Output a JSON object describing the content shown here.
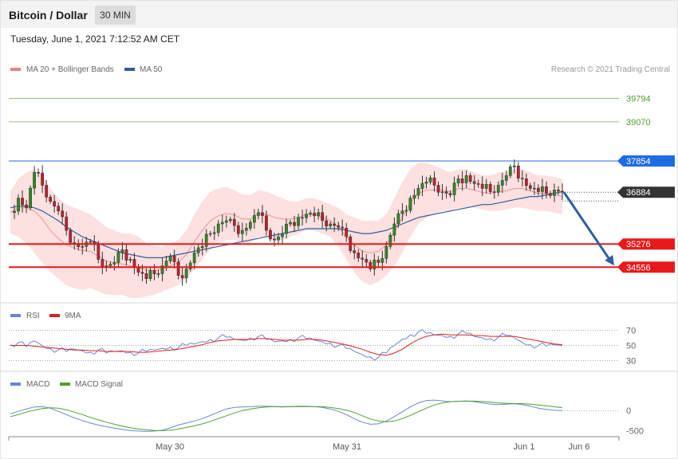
{
  "header": {
    "title": "Bitcoin / Dollar",
    "interval": "30 MIN"
  },
  "timestamp": "Tuesday, June 1, 2021 7:12:52 AM CET",
  "colors": {
    "ma20": "#f08080",
    "bollinger_fill": "#fde0e0",
    "ma50": "#2f5e9e",
    "candle_up": "#2e8b22",
    "candle_down": "#c0202a",
    "resistance_green": "#4fa12b",
    "pivot_blue": "#1e6be6",
    "support_red": "#e8191a",
    "current_price": "#333333",
    "rsi": "#6b86d6",
    "rsi_9ma": "#e02020",
    "macd": "#6b86d6",
    "macd_signal": "#4fa12b",
    "arrow": "#2e5fa0"
  },
  "chart_data": [
    {
      "type": "candlestick",
      "legend": [
        {
          "name": "MA 20 + Bollinger Bands",
          "color": "#f08080"
        },
        {
          "name": "MA 50",
          "color": "#2f5e9e"
        }
      ],
      "credit": "Research © 2021 Trading Central",
      "levels": [
        {
          "value": 39794,
          "label": "39794",
          "kind": "resistance"
        },
        {
          "value": 39070,
          "label": "39070",
          "kind": "resistance"
        },
        {
          "value": 37854,
          "label": "37854",
          "kind": "pivot"
        },
        {
          "value": 36884,
          "label": "36884",
          "kind": "current"
        },
        {
          "value": 35276,
          "label": "35276",
          "kind": "support"
        },
        {
          "value": 34556,
          "label": "34556",
          "kind": "support"
        }
      ],
      "x_ticks": [
        "May 30",
        "May 31",
        "Jun 1",
        "Jun 6"
      ],
      "ylim": [
        33500,
        40500
      ],
      "price_path": [
        36250,
        36700,
        36400,
        37500,
        37100,
        36600,
        36300,
        35700,
        35300,
        35200,
        35350,
        34800,
        34600,
        34700,
        35100,
        34800,
        34400,
        34200,
        34350,
        34600,
        34900,
        34300,
        34500,
        35000,
        35200,
        35600,
        35900,
        36000,
        35850,
        35700,
        35950,
        36250,
        35700,
        35400,
        35600,
        35950,
        36100,
        36200,
        36150,
        36000,
        35900,
        35800,
        35500,
        35000,
        34800,
        34500,
        34700,
        35200,
        35900,
        36300,
        36700,
        37000,
        37200,
        37100,
        36900,
        36800,
        37300,
        37400,
        37150,
        37000,
        36900,
        37100,
        37400,
        37700,
        37300,
        37000,
        36900,
        36850,
        36950,
        36884
      ],
      "bb_upper_path": [
        36900,
        37300,
        37500,
        37600,
        37400,
        37000,
        36700,
        36500,
        36400,
        36300,
        36200,
        36000,
        35800,
        35700,
        35600,
        35600,
        35500,
        35300,
        35200,
        35200,
        35300,
        35400,
        35700,
        36200,
        36600,
        36900,
        37000,
        37050,
        36950,
        36800,
        36800,
        36950,
        36900,
        36800,
        36700,
        36600,
        36600,
        36700,
        36700,
        36600,
        36500,
        36400,
        36200,
        36100,
        36000,
        36000,
        36000,
        36200,
        36700,
        37200,
        37600,
        37800,
        37800,
        37700,
        37600,
        37500,
        37600,
        37600,
        37500,
        37400,
        37400,
        37500,
        37500,
        37600,
        37600,
        37500,
        37400,
        37400,
        37350,
        37300
      ],
      "bb_lower_path": [
        35600,
        35500,
        35300,
        35000,
        34700,
        34400,
        34200,
        34000,
        33900,
        33850,
        33900,
        33800,
        33700,
        33700,
        33700,
        33600,
        33600,
        33650,
        33700,
        33800,
        33900,
        34000,
        34200,
        34500,
        34800,
        35100,
        35300,
        35400,
        35400,
        35300,
        35300,
        35500,
        35500,
        35400,
        35400,
        35500,
        35600,
        35700,
        35700,
        35600,
        35500,
        35200,
        34800,
        34400,
        34100,
        34000,
        34100,
        34300,
        34600,
        35000,
        35500,
        35900,
        36100,
        36200,
        36300,
        36300,
        36400,
        36400,
        36400,
        36350,
        36300,
        36300,
        36350,
        36400,
        36400,
        36350,
        36300,
        36300,
        36250,
        36200
      ],
      "ma50_path": [
        36400,
        36450,
        36450,
        36400,
        36300,
        36150,
        36000,
        35800,
        35650,
        35500,
        35400,
        35300,
        35200,
        35100,
        35000,
        34950,
        34900,
        34850,
        34850,
        34850,
        34900,
        34950,
        35000,
        35050,
        35100,
        35150,
        35200,
        35250,
        35300,
        35350,
        35400,
        35450,
        35500,
        35550,
        35600,
        35650,
        35700,
        35750,
        35750,
        35750,
        35750,
        35750,
        35700,
        35650,
        35600,
        35600,
        35650,
        35700,
        35800,
        35900,
        36000,
        36100,
        36150,
        36200,
        36250,
        36300,
        36350,
        36400,
        36450,
        36500,
        36500,
        36550,
        36600,
        36650,
        36700,
        36750,
        36750,
        36800,
        36850,
        36900
      ],
      "forecast_target": 34556
    },
    {
      "type": "line",
      "legend": [
        {
          "name": "RSI",
          "color": "#6b86d6"
        },
        {
          "name": "9MA",
          "color": "#e02020"
        }
      ],
      "y_ticks": [
        "70",
        "50",
        "30"
      ],
      "ylim": [
        20,
        80
      ],
      "rsi_path": [
        51,
        54,
        48,
        56,
        50,
        46,
        44,
        42,
        45,
        43,
        41,
        44,
        40,
        42,
        43,
        41,
        40,
        42,
        44,
        46,
        48,
        47,
        50,
        52,
        55,
        58,
        60,
        61,
        58,
        57,
        60,
        62,
        58,
        55,
        56,
        58,
        60,
        59,
        57,
        55,
        53,
        50,
        46,
        42,
        38,
        35,
        34,
        40,
        50,
        58,
        64,
        68,
        66,
        64,
        63,
        62,
        65,
        66,
        62,
        60,
        59,
        61,
        63,
        60,
        54,
        51,
        50,
        49,
        51,
        50
      ],
      "ma9_path": [
        50,
        50,
        50,
        49,
        48,
        47,
        46,
        45,
        44,
        44,
        43,
        43,
        42,
        42,
        42,
        42,
        41,
        41,
        42,
        43,
        44,
        45,
        47,
        49,
        51,
        54,
        56,
        57,
        58,
        58,
        58,
        59,
        59,
        58,
        57,
        57,
        57,
        58,
        58,
        57,
        55,
        53,
        51,
        48,
        45,
        41,
        38,
        37,
        40,
        45,
        52,
        58,
        62,
        64,
        65,
        64,
        64,
        64,
        63,
        63,
        62,
        62,
        62,
        62,
        60,
        58,
        56,
        54,
        52,
        51
      ]
    },
    {
      "type": "line",
      "legend": [
        {
          "name": "MACD",
          "color": "#6b86d6"
        },
        {
          "name": "MACD Signal",
          "color": "#4fa12b"
        }
      ],
      "y_ticks": [
        "0",
        "-500"
      ],
      "ylim": [
        -650,
        500
      ],
      "macd_path": [
        -80,
        -20,
        40,
        90,
        100,
        60,
        -20,
        -100,
        -180,
        -250,
        -310,
        -360,
        -400,
        -440,
        -470,
        -500,
        -510,
        -520,
        -510,
        -490,
        -430,
        -360,
        -310,
        -260,
        -200,
        -120,
        -40,
        40,
        80,
        90,
        100,
        110,
        110,
        100,
        90,
        100,
        110,
        110,
        100,
        80,
        40,
        -20,
        -100,
        -200,
        -290,
        -340,
        -330,
        -260,
        -150,
        -30,
        90,
        190,
        250,
        260,
        240,
        220,
        230,
        240,
        220,
        190,
        160,
        150,
        160,
        170,
        150,
        110,
        60,
        30,
        10,
        0
      ],
      "signal_path": [
        -150,
        -100,
        -40,
        10,
        50,
        70,
        60,
        20,
        -40,
        -100,
        -170,
        -230,
        -290,
        -340,
        -390,
        -430,
        -460,
        -480,
        -495,
        -500,
        -490,
        -460,
        -420,
        -380,
        -330,
        -270,
        -200,
        -130,
        -60,
        0,
        40,
        70,
        90,
        100,
        100,
        100,
        100,
        100,
        100,
        95,
        80,
        50,
        10,
        -50,
        -130,
        -210,
        -260,
        -280,
        -260,
        -200,
        -120,
        -30,
        60,
        140,
        190,
        220,
        230,
        235,
        235,
        225,
        210,
        190,
        180,
        175,
        170,
        160,
        140,
        120,
        95,
        70
      ]
    }
  ]
}
